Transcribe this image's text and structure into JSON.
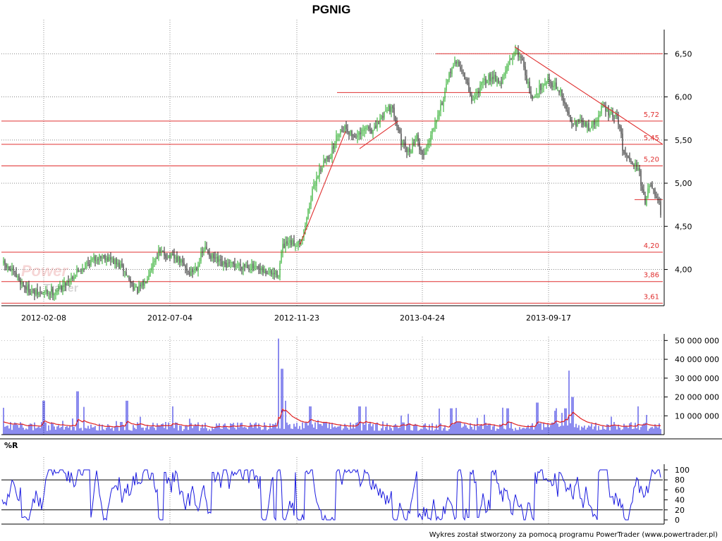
{
  "chart_data": [
    {
      "type": "candlestick",
      "title": "PGNIG",
      "x_tick_labels": [
        "2012-02-08",
        "2012-07-04",
        "2012-11-23",
        "2013-04-24",
        "2013-09-17"
      ],
      "y_ticks": [
        "4,00",
        "4,50",
        "5,00",
        "5,50",
        "6,00",
        "6,50"
      ],
      "ylim": [
        3.58,
        6.78
      ],
      "grid": true,
      "horizontal_levels": [
        {
          "label": "5,72",
          "value": 5.72
        },
        {
          "label": "5,45",
          "value": 5.45
        },
        {
          "label": "5,20",
          "value": 5.2
        },
        {
          "label": "4,20",
          "value": 4.2
        },
        {
          "label": "3,86",
          "value": 3.86
        },
        {
          "label": "3,61",
          "value": 3.61
        }
      ],
      "unlabeled_levels": [
        6.5,
        6.05,
        4.81
      ],
      "price_path": [
        [
          0,
          4.1
        ],
        [
          20,
          3.95
        ],
        [
          35,
          3.8
        ],
        [
          50,
          3.72
        ],
        [
          65,
          3.73
        ],
        [
          80,
          3.75
        ],
        [
          100,
          3.9
        ],
        [
          120,
          4.05
        ],
        [
          140,
          4.15
        ],
        [
          150,
          4.15
        ],
        [
          160,
          4.1
        ],
        [
          175,
          4.0
        ],
        [
          185,
          3.85
        ],
        [
          195,
          3.75
        ],
        [
          205,
          3.85
        ],
        [
          215,
          4.05
        ],
        [
          225,
          4.2
        ],
        [
          240,
          4.15
        ],
        [
          255,
          4.1
        ],
        [
          270,
          3.95
        ],
        [
          280,
          4.05
        ],
        [
          290,
          4.25
        ],
        [
          300,
          4.15
        ],
        [
          315,
          4.05
        ],
        [
          330,
          4.05
        ],
        [
          350,
          4.05
        ],
        [
          370,
          3.98
        ],
        [
          385,
          3.95
        ],
        [
          395,
          3.95
        ],
        [
          400,
          4.25
        ],
        [
          410,
          4.3
        ],
        [
          420,
          4.3
        ],
        [
          430,
          4.4
        ],
        [
          440,
          4.8
        ],
        [
          450,
          5.1
        ],
        [
          460,
          5.25
        ],
        [
          470,
          5.35
        ],
        [
          480,
          5.6
        ],
        [
          490,
          5.65
        ],
        [
          500,
          5.55
        ],
        [
          510,
          5.55
        ],
        [
          520,
          5.65
        ],
        [
          530,
          5.6
        ],
        [
          540,
          5.75
        ],
        [
          550,
          5.9
        ],
        [
          560,
          5.8
        ],
        [
          570,
          5.45
        ],
        [
          580,
          5.35
        ],
        [
          590,
          5.55
        ],
        [
          600,
          5.3
        ],
        [
          610,
          5.55
        ],
        [
          620,
          5.8
        ],
        [
          630,
          6.0
        ],
        [
          640,
          6.35
        ],
        [
          650,
          6.4
        ],
        [
          660,
          6.2
        ],
        [
          670,
          5.95
        ],
        [
          680,
          6.1
        ],
        [
          690,
          6.2
        ],
        [
          700,
          6.25
        ],
        [
          710,
          6.15
        ],
        [
          720,
          6.35
        ],
        [
          730,
          6.55
        ],
        [
          740,
          6.45
        ],
        [
          750,
          6.1
        ],
        [
          755,
          5.95
        ],
        [
          765,
          6.1
        ],
        [
          775,
          6.2
        ],
        [
          785,
          6.15
        ],
        [
          795,
          6.05
        ],
        [
          805,
          5.8
        ],
        [
          815,
          5.7
        ],
        [
          825,
          5.7
        ],
        [
          835,
          5.65
        ],
        [
          845,
          5.7
        ],
        [
          855,
          5.9
        ],
        [
          865,
          5.8
        ],
        [
          875,
          5.75
        ],
        [
          880,
          5.6
        ],
        [
          885,
          5.3
        ],
        [
          890,
          5.35
        ],
        [
          900,
          5.2
        ],
        [
          905,
          5.2
        ],
        [
          910,
          4.95
        ],
        [
          915,
          4.8
        ],
        [
          920,
          4.95
        ],
        [
          925,
          4.95
        ],
        [
          930,
          4.8
        ],
        [
          935,
          4.75
        ],
        [
          938,
          4.6
        ]
      ]
    },
    {
      "type": "bar",
      "name": "volume",
      "y_ticks": [
        "10 000 000",
        "20 000 000",
        "30 000 000",
        "40 000 000",
        "50 000 000"
      ],
      "ylim": [
        0,
        52000000
      ],
      "base_volume": 4000000,
      "moving_average_level": 6000000,
      "spikes": [
        [
          62,
          18000000
        ],
        [
          110,
          23000000
        ],
        [
          180,
          18000000
        ],
        [
          245,
          15000000
        ],
        [
          395,
          51000000
        ],
        [
          400,
          35000000
        ],
        [
          405,
          18000000
        ],
        [
          440,
          15000000
        ],
        [
          510,
          15000000
        ],
        [
          640,
          14000000
        ],
        [
          720,
          14000000
        ],
        [
          762,
          17000000
        ],
        [
          802,
          14000000
        ],
        [
          807,
          34000000
        ],
        [
          812,
          20000000
        ],
        [
          905,
          15000000
        ]
      ]
    },
    {
      "type": "line",
      "name": "%R",
      "label": "%R",
      "y_ticks": [
        "0",
        "20",
        "40",
        "60",
        "80",
        "100"
      ],
      "ylim": [
        0,
        100
      ],
      "reference_lines": [
        20,
        80
      ]
    }
  ],
  "credit": "Wykres został stworzony za pomocą programu PowerTrader (www.powertrader.pl)",
  "watermark": "PowerTrader",
  "colors": {
    "up": "#22aa22",
    "down": "#222222",
    "level_line": "#e03030",
    "trend_line": "#e03030",
    "volume_bar": "#1a1adf",
    "volume_ma": "#e02020",
    "williams_line": "#1a1adf"
  }
}
